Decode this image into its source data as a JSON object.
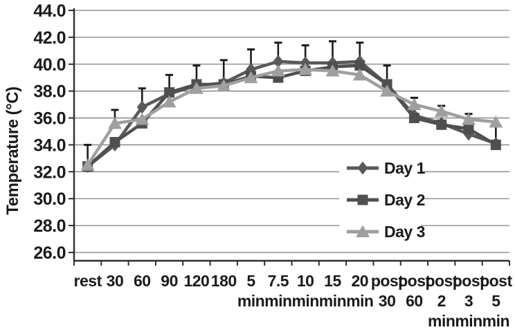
{
  "chart_data": {
    "type": "line",
    "title": "",
    "ylabel": "Temperature (°C)",
    "xlabel": "",
    "ylim": [
      26.0,
      44.0
    ],
    "ytick_step": 2.0,
    "ytick_labels": [
      "44.0",
      "42.0",
      "40.0",
      "38.0",
      "36.0",
      "34.0",
      "32.0",
      "30.0",
      "28.0",
      "26.0"
    ],
    "categories": [
      "rest",
      "30",
      "60",
      "90",
      "120",
      "180",
      "5 min",
      "7.5 min",
      "10 min",
      "15 min",
      "20 min",
      "post 30",
      "post 60",
      "post 2 min",
      "post 3 min",
      "post 5 min"
    ],
    "category_label_lines": [
      [
        "rest"
      ],
      [
        "30"
      ],
      [
        "60"
      ],
      [
        "90"
      ],
      [
        "120"
      ],
      [
        "180"
      ],
      [
        "5",
        "min"
      ],
      [
        "7.5",
        "min"
      ],
      [
        "10",
        "min"
      ],
      [
        "15",
        "min"
      ],
      [
        "20",
        "min"
      ],
      [
        "post",
        "30"
      ],
      [
        "post",
        "60"
      ],
      [
        "post",
        "2",
        "min"
      ],
      [
        "post",
        "3",
        "min"
      ],
      [
        "post",
        "5",
        "min"
      ]
    ],
    "grid": "horizontal",
    "legend_position": "inside-right",
    "series": [
      {
        "name": "Day 1",
        "marker": "diamond",
        "color": "#595959",
        "values": [
          32.4,
          34.0,
          36.8,
          37.8,
          38.4,
          38.6,
          39.6,
          40.2,
          40.1,
          40.1,
          40.2,
          38.5,
          36.2,
          35.6,
          34.8,
          34.1
        ]
      },
      {
        "name": "Day 2",
        "marker": "square",
        "color": "#4f4f4f",
        "values": [
          32.4,
          34.2,
          35.6,
          37.9,
          38.5,
          38.5,
          39.1,
          39.0,
          39.5,
          39.8,
          39.9,
          38.5,
          36.0,
          35.5,
          35.2,
          34.0
        ]
      },
      {
        "name": "Day 3",
        "marker": "triangle",
        "color": "#9f9f9f",
        "values": [
          32.5,
          35.6,
          35.9,
          37.2,
          38.2,
          38.4,
          39.0,
          39.5,
          39.6,
          39.5,
          39.2,
          38.0,
          37.0,
          36.5,
          35.9,
          35.7
        ]
      }
    ],
    "error_bars": {
      "direction": "upper",
      "color": "#1c1c1c",
      "base": [
        32.5,
        35.6,
        36.8,
        37.9,
        38.5,
        38.6,
        39.6,
        40.2,
        40.1,
        40.1,
        40.2,
        38.5,
        37.0,
        36.5,
        35.9,
        34.0
      ],
      "top": [
        34.0,
        36.6,
        38.2,
        39.2,
        39.9,
        40.3,
        41.1,
        41.6,
        41.4,
        41.7,
        41.6,
        39.9,
        37.5,
        36.9,
        36.3,
        35.5
      ]
    },
    "colors": {
      "grid": "#7f7f7f",
      "axis": "#2e2e2e",
      "text": "#1a1a1a",
      "background": "#ffffff"
    }
  }
}
